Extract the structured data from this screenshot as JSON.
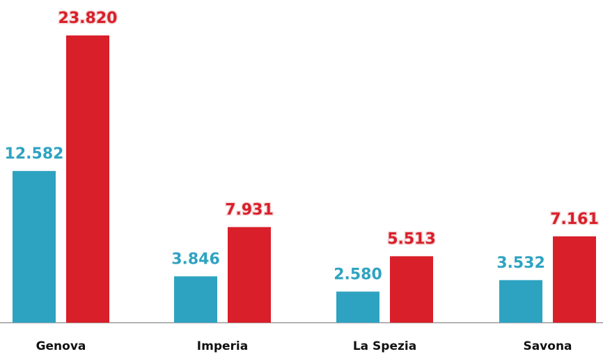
{
  "chart_data": {
    "type": "bar",
    "categories": [
      "Genova",
      "Imperia",
      "La Spezia",
      "Savona"
    ],
    "series": [
      {
        "color": "#2ea3c1",
        "values": [
          12582,
          3846,
          2580,
          3532
        ],
        "value_labels": [
          "12.582",
          "3.846",
          "2.580",
          "3.532"
        ]
      },
      {
        "color": "#d91f2a",
        "values": [
          23820,
          7931,
          5513,
          7161
        ],
        "value_labels": [
          "23.820",
          "7.931",
          "5.513",
          "7.161"
        ]
      }
    ]
  }
}
